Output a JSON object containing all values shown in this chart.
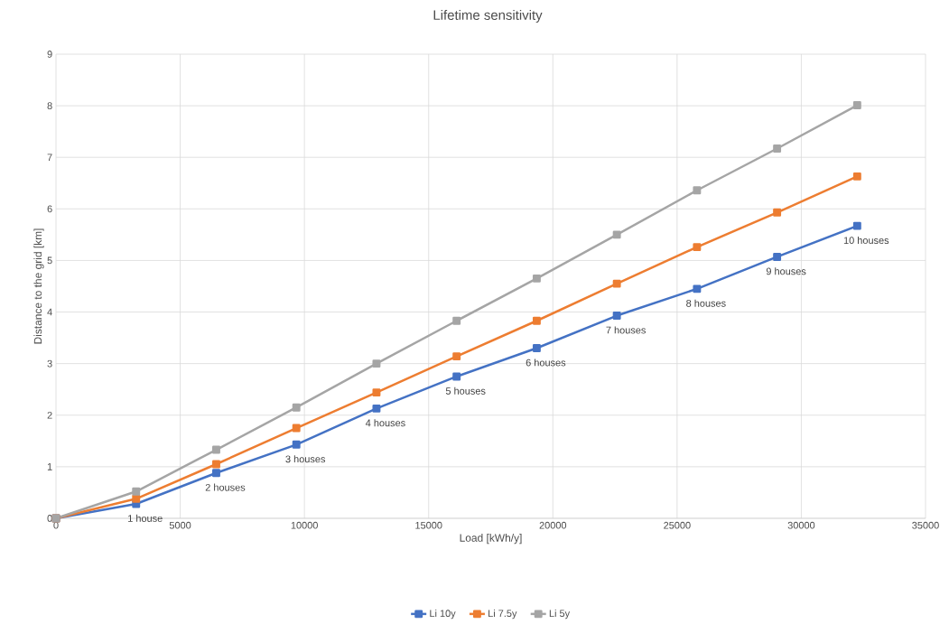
{
  "chart_data": {
    "type": "line",
    "title": "Lifetime sensitivity",
    "xlabel": "Load [kWh/y]",
    "ylabel": "Distance to the grid [km]",
    "x": [
      0,
      3225,
      6450,
      9675,
      12900,
      16125,
      19350,
      22575,
      25800,
      29025,
      32250
    ],
    "series": [
      {
        "name": "Li 10y",
        "color": "#4472c4",
        "values": [
          0,
          0.28,
          0.88,
          1.43,
          2.13,
          2.75,
          3.3,
          3.93,
          4.45,
          5.07,
          5.67
        ]
      },
      {
        "name": "Li 7.5y",
        "color": "#ed7d31",
        "values": [
          0,
          0.38,
          1.05,
          1.75,
          2.44,
          3.14,
          3.83,
          4.55,
          5.26,
          5.93,
          6.63
        ]
      },
      {
        "name": "Li 5y",
        "color": "#a5a5a5",
        "values": [
          0,
          0.52,
          1.33,
          2.15,
          3.0,
          3.83,
          4.65,
          5.5,
          6.36,
          7.17,
          8.01
        ]
      }
    ],
    "annotations": [
      {
        "text": "1 house",
        "x": 3225,
        "y": 0.28
      },
      {
        "text": "2 houses",
        "x": 6450,
        "y": 0.88
      },
      {
        "text": "3 houses",
        "x": 9675,
        "y": 1.43
      },
      {
        "text": "4 houses",
        "x": 12900,
        "y": 2.13
      },
      {
        "text": "5 houses",
        "x": 16125,
        "y": 2.75
      },
      {
        "text": "6 houses",
        "x": 19350,
        "y": 3.3
      },
      {
        "text": "7 houses",
        "x": 22575,
        "y": 3.93
      },
      {
        "text": "8 houses",
        "x": 25800,
        "y": 4.45
      },
      {
        "text": "9 houses",
        "x": 29025,
        "y": 5.07
      },
      {
        "text": "10 houses",
        "x": 32250,
        "y": 5.67
      }
    ],
    "xlim": [
      0,
      35000
    ],
    "xticks": [
      0,
      5000,
      10000,
      15000,
      20000,
      25000,
      30000,
      35000
    ],
    "ylim": [
      0,
      9
    ],
    "yticks": [
      0,
      1,
      2,
      3,
      4,
      5,
      6,
      7,
      8,
      9
    ],
    "grid": true,
    "legend": "bottom",
    "marker": "square",
    "line_style": "solid"
  }
}
